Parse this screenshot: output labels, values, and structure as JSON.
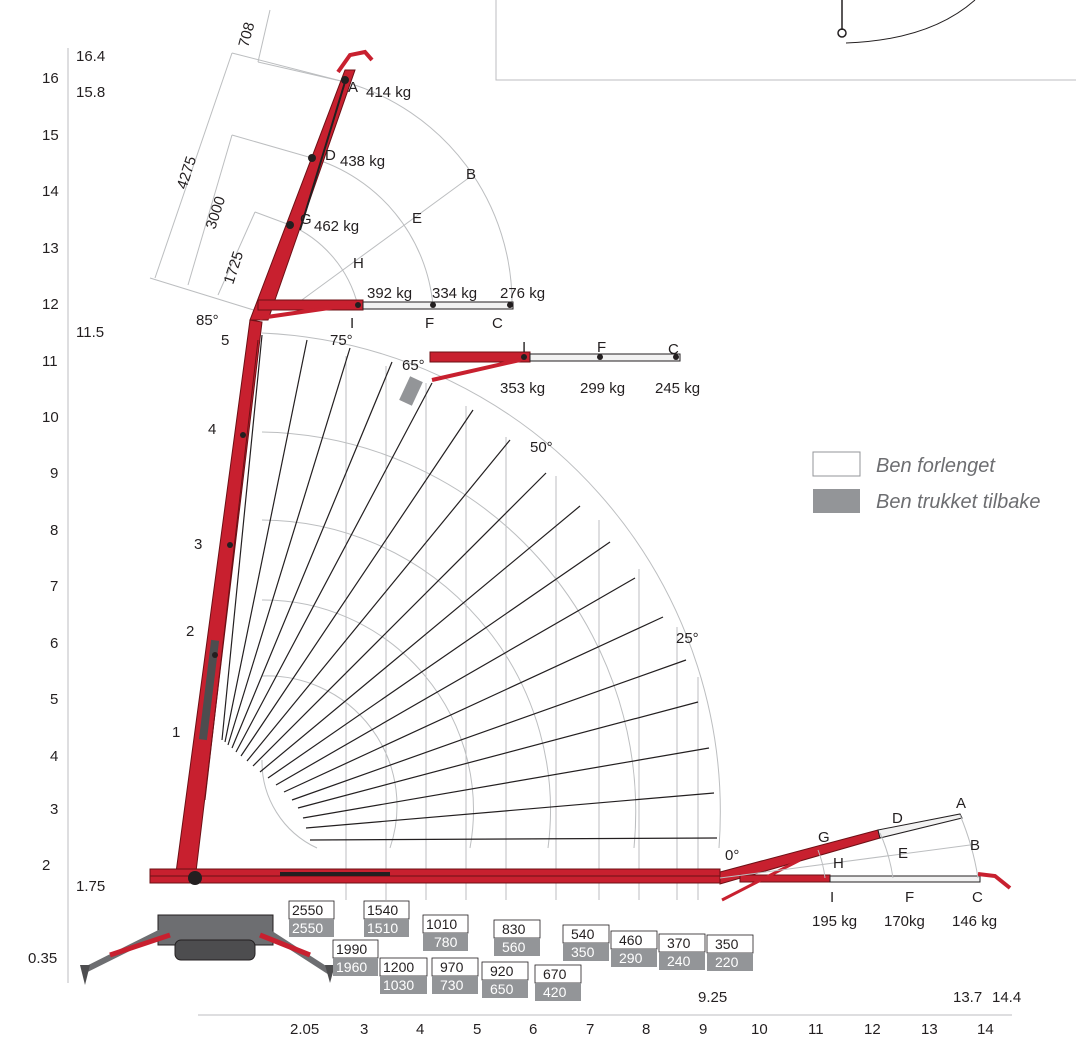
{
  "y_axis_ticks": [
    "2",
    "3",
    "4",
    "5",
    "6",
    "7",
    "8",
    "9",
    "10",
    "11",
    "12",
    "13",
    "14",
    "15",
    "16"
  ],
  "y_axis_extra": [
    "16.4",
    "15.8",
    "11.5",
    "1.75",
    "0.35"
  ],
  "x_axis_ticks": [
    "3",
    "4",
    "5",
    "6",
    "7",
    "8",
    "9",
    "10",
    "11",
    "12",
    "13",
    "14"
  ],
  "x_axis_extra": [
    "2.05",
    "9.25",
    "13.7",
    "14.4"
  ],
  "boom_sections": [
    "1",
    "2",
    "3",
    "4",
    "5"
  ],
  "angles": [
    "85°",
    "75°",
    "65°",
    "50°",
    "25°",
    "0°"
  ],
  "dims": [
    "708",
    "4275",
    "3000",
    "1725"
  ],
  "jib_points_top": [
    "A",
    "D",
    "G",
    "H",
    "B",
    "E",
    "I",
    "F",
    "C"
  ],
  "jib_loads_85": [
    "414 kg",
    "438 kg",
    "462 kg",
    "392 kg",
    "334 kg",
    "276 kg"
  ],
  "jib_labels_65": [
    "I",
    "F",
    "C"
  ],
  "jib_loads_65": [
    "353 kg",
    "299 kg",
    "245 kg"
  ],
  "jib_labels_0": [
    "A",
    "D",
    "G",
    "B",
    "E",
    "H",
    "I",
    "F",
    "C"
  ],
  "jib_loads_0": [
    "195 kg",
    "170kg",
    "146 kg"
  ],
  "load_table": [
    {
      "w": "2550",
      "g": "2550"
    },
    {
      "w": "1990",
      "g": "1960"
    },
    {
      "w": "1540",
      "g": "1510"
    },
    {
      "w": "1200",
      "g": "1030"
    },
    {
      "w": "1010",
      "g": "780"
    },
    {
      "w": "970",
      "g": "730"
    },
    {
      "w": "830",
      "g": "560"
    },
    {
      "w": "920",
      "g": "650"
    },
    {
      "w": "670",
      "g": "420"
    },
    {
      "w": "540",
      "g": "350"
    },
    {
      "w": "460",
      "g": "290"
    },
    {
      "w": "370",
      "g": "240"
    },
    {
      "w": "350",
      "g": "220"
    }
  ],
  "legend": [
    {
      "label": "Ben forlenget",
      "fill": "#ffffff"
    },
    {
      "label": "Ben trukket tilbake",
      "fill": "#939598"
    }
  ],
  "colors": {
    "crane_red": "#c8202f",
    "grid": "#bcbec0",
    "line": "#231f20",
    "gray_box": "#939598"
  }
}
